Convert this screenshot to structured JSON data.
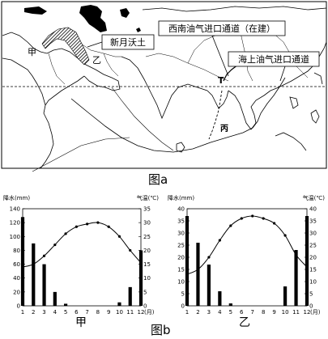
{
  "map": {
    "labels": {
      "fertile_crescent": "新月沃土",
      "jia": "甲",
      "yi": "乙",
      "southwest_corridor": "西南油气进口通道（在建）",
      "sea_corridor": "海上油气进口通道",
      "point_t": "T",
      "point_bing": "丙"
    }
  },
  "captions": {
    "fig_a": "图a",
    "fig_b": "图b"
  },
  "chart_data": [
    {
      "type": "bar",
      "panel_label": "甲",
      "categories": [
        "1",
        "2",
        "3",
        "4",
        "5",
        "6",
        "7",
        "8",
        "9",
        "10",
        "11",
        "12"
      ],
      "xunit": "(月)",
      "ylabel_left": "降水(mm)",
      "ylabel_right": "气温(℃)",
      "ylim_left": [
        0,
        140
      ],
      "yticks_left": [
        0,
        20,
        40,
        60,
        80,
        100,
        120,
        140
      ],
      "ylim_right": [
        0,
        35
      ],
      "yticks_right": [
        0,
        5,
        10,
        15,
        20,
        25,
        30,
        35
      ],
      "series": [
        {
          "kind": "bar",
          "axis": "left",
          "values": [
            128,
            90,
            60,
            20,
            3,
            0,
            0,
            0,
            0,
            5,
            27,
            80
          ]
        },
        {
          "kind": "line",
          "axis": "right",
          "values": [
            14,
            15,
            18,
            22,
            26,
            28.5,
            29.5,
            30,
            28.5,
            25,
            20,
            15.5
          ]
        }
      ]
    },
    {
      "type": "bar",
      "panel_label": "乙",
      "categories": [
        "1",
        "2",
        "3",
        "4",
        "5",
        "6",
        "7",
        "8",
        "9",
        "10",
        "11",
        "12"
      ],
      "xunit": "(月)",
      "ylabel_left": "降水(mm)",
      "ylabel_right": "气温(℃)",
      "ylim_left": [
        0,
        40
      ],
      "yticks_left": [
        0,
        5,
        10,
        15,
        20,
        25,
        30,
        35,
        40
      ],
      "ylim_right": [
        0,
        40
      ],
      "yticks_right": [
        0,
        5,
        10,
        15,
        20,
        25,
        30,
        35,
        40
      ],
      "series": [
        {
          "kind": "bar",
          "axis": "left",
          "values": [
            37,
            26,
            17,
            6,
            1,
            0,
            0,
            0,
            0,
            8,
            23,
            37
          ]
        },
        {
          "kind": "line",
          "axis": "right",
          "values": [
            13,
            15,
            20,
            27,
            33,
            36,
            37,
            36,
            34,
            29,
            21,
            16
          ]
        }
      ]
    }
  ]
}
